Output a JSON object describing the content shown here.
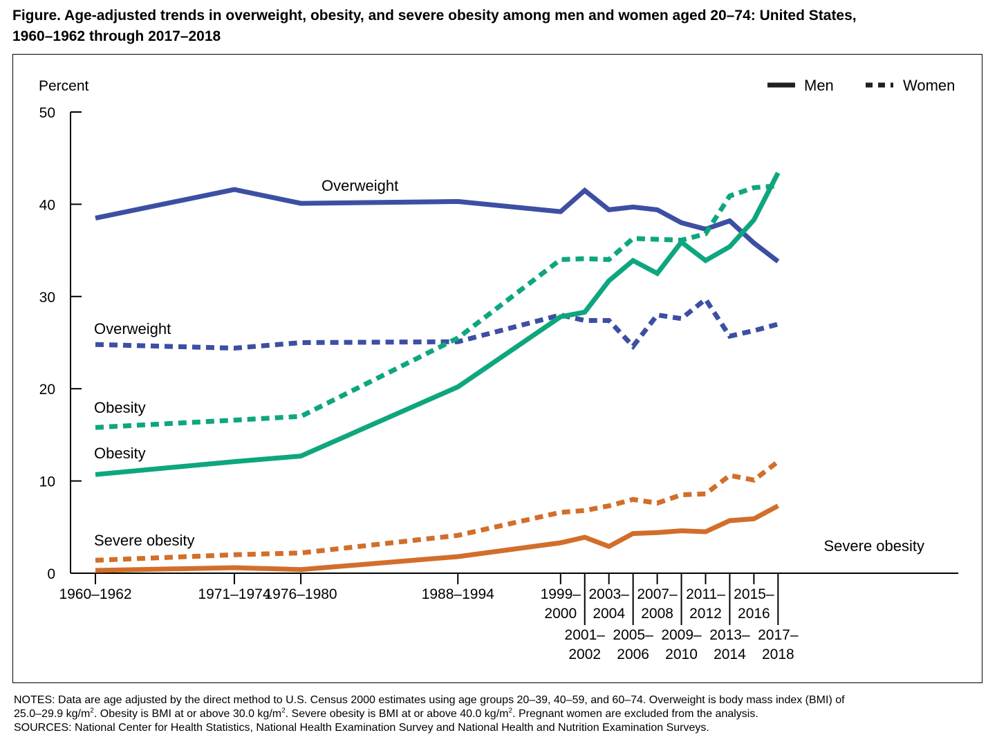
{
  "title_line1": "Figure. Age-adjusted trends in overweight, obesity, and severe obesity among men and women aged 20–74: United States,",
  "title_line2": "1960–1962 through 2017–2018",
  "notes": {
    "line1": "NOTES: Data are age adjusted by the direct method to U.S. Census 2000 estimates using age groups 20–39, 40–59, and 60–74. Overweight is body mass index (BMI) of",
    "line2a": "25.0–29.9 kg/m",
    "line2b": ". Obesity is BMI at or above 30.0 kg/m",
    "line2c": ". Severe obesity is BMI at or above 40.0 kg/m",
    "line2d": ". Pregnant women are excluded from the analysis.",
    "sup": "2",
    "sources": "SOURCES: National Center for Health Statistics, National Health Examination Survey and National Health and Nutrition Examination Surveys."
  },
  "chart_data": {
    "type": "line",
    "ylabel": "Percent",
    "ylim": [
      0,
      50
    ],
    "yticks": [
      0,
      10,
      20,
      30,
      40,
      50
    ],
    "legend": {
      "position": "top-right",
      "entries": [
        {
          "label": "Men",
          "style": "solid"
        },
        {
          "label": "Women",
          "style": "dotted"
        }
      ]
    },
    "x_years": [
      1961,
      1972.5,
      1978,
      1991,
      1999.5,
      2001.5,
      2003.5,
      2005.5,
      2007.5,
      2009.5,
      2011.5,
      2013.5,
      2015.5,
      2017.5
    ],
    "x_labels": [
      {
        "year": 1961,
        "lines": [
          "1960–1962"
        ],
        "row": "top"
      },
      {
        "year": 1972.5,
        "lines": [
          "1971–1974"
        ],
        "row": "top"
      },
      {
        "year": 1978,
        "lines": [
          "1976–1980"
        ],
        "row": "top"
      },
      {
        "year": 1991,
        "lines": [
          "1988–1994"
        ],
        "row": "top"
      },
      {
        "year": 1999.5,
        "lines": [
          "1999–",
          "2000"
        ],
        "row": "top"
      },
      {
        "year": 2001.5,
        "lines": [
          "2001–",
          "2002"
        ],
        "row": "bottom"
      },
      {
        "year": 2003.5,
        "lines": [
          "2003–",
          "2004"
        ],
        "row": "top"
      },
      {
        "year": 2005.5,
        "lines": [
          "2005–",
          "2006"
        ],
        "row": "bottom"
      },
      {
        "year": 2007.5,
        "lines": [
          "2007–",
          "2008"
        ],
        "row": "top"
      },
      {
        "year": 2009.5,
        "lines": [
          "2009–",
          "2010"
        ],
        "row": "bottom"
      },
      {
        "year": 2011.5,
        "lines": [
          "2011–",
          "2012"
        ],
        "row": "top"
      },
      {
        "year": 2013.5,
        "lines": [
          "2013–",
          "2014"
        ],
        "row": "bottom"
      },
      {
        "year": 2015.5,
        "lines": [
          "2015–",
          "2016"
        ],
        "row": "top"
      },
      {
        "year": 2017.5,
        "lines": [
          "2017–",
          "2018"
        ],
        "row": "bottom"
      }
    ],
    "series": [
      {
        "sex": "Men",
        "measure": "Overweight",
        "dash": "solid",
        "color": "#3d4fa3",
        "values": [
          38.5,
          41.6,
          40.1,
          40.3,
          39.2,
          41.5,
          39.4,
          39.7,
          39.4,
          38.0,
          37.3,
          38.2,
          35.8,
          33.8
        ]
      },
      {
        "sex": "Women",
        "measure": "Overweight",
        "dash": "dotted",
        "color": "#3d4fa3",
        "values": [
          24.8,
          24.4,
          25.0,
          25.1,
          28.0,
          27.4,
          27.4,
          24.6,
          28.0,
          27.6,
          29.7,
          25.7,
          26.3,
          27.0
        ]
      },
      {
        "sex": "Men",
        "measure": "Obesity",
        "dash": "solid",
        "color": "#0ea67e",
        "values": [
          10.7,
          12.1,
          12.7,
          20.2,
          27.8,
          28.3,
          31.7,
          33.9,
          32.5,
          35.9,
          33.9,
          35.4,
          38.3,
          43.4
        ]
      },
      {
        "sex": "Women",
        "measure": "Obesity",
        "dash": "dotted",
        "color": "#0ea67e",
        "values": [
          15.8,
          16.6,
          17.0,
          25.5,
          34.0,
          34.1,
          34.0,
          36.3,
          36.2,
          36.1,
          36.8,
          40.9,
          41.8,
          42.0
        ]
      },
      {
        "sex": "Men",
        "measure": "Severe obesity",
        "dash": "solid",
        "color": "#d26e2b",
        "values": [
          0.3,
          0.6,
          0.4,
          1.8,
          3.3,
          3.9,
          2.9,
          4.3,
          4.4,
          4.6,
          4.5,
          5.7,
          5.9,
          7.3
        ]
      },
      {
        "sex": "Women",
        "measure": "Severe obesity",
        "dash": "dotted",
        "color": "#d26e2b",
        "values": [
          1.4,
          2.0,
          2.2,
          4.1,
          6.6,
          6.8,
          7.3,
          8.0,
          7.6,
          8.5,
          8.6,
          10.6,
          10.1,
          12.1
        ]
      }
    ],
    "annotations": [
      {
        "text": "Overweight",
        "series_index": 0
      },
      {
        "text": "Overweight",
        "series_index": 1
      },
      {
        "text": "Obesity",
        "series_index": 3
      },
      {
        "text": "Obesity",
        "series_index": 2
      },
      {
        "text": "Severe obesity",
        "series_index": 5
      },
      {
        "text": "Severe obesity",
        "series_index": 4
      }
    ]
  }
}
